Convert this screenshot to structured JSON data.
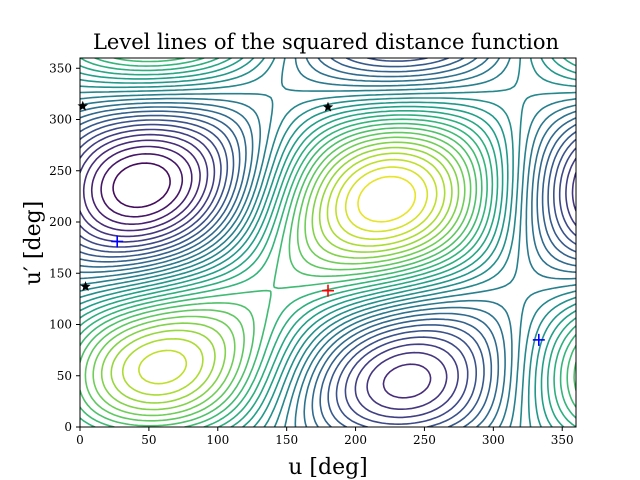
{
  "chart_data": {
    "type": "contour",
    "title": "Level lines of the squared distance function",
    "xlabel": "u [deg]",
    "ylabel": "u′ [deg]",
    "xlim": [
      0,
      360
    ],
    "ylim": [
      0,
      360
    ],
    "xticks": [
      0,
      50,
      100,
      150,
      200,
      250,
      300,
      350
    ],
    "yticks": [
      0,
      50,
      100,
      150,
      200,
      250,
      300,
      350
    ],
    "grid": false,
    "colormap": "viridis",
    "markers": [
      {
        "kind": "plus",
        "color": "#ff0000",
        "x": 180,
        "y": 133
      },
      {
        "kind": "plus",
        "color": "#0000ff",
        "x": 27,
        "y": 181
      },
      {
        "kind": "plus",
        "color": "#0000ff",
        "x": 333,
        "y": 85
      },
      {
        "kind": "star",
        "color": "#000000",
        "x": 2,
        "y": 313
      },
      {
        "kind": "star",
        "color": "#000000",
        "x": 180,
        "y": 312
      },
      {
        "kind": "star",
        "color": "#000000",
        "x": 4,
        "y": 137
      }
    ]
  }
}
